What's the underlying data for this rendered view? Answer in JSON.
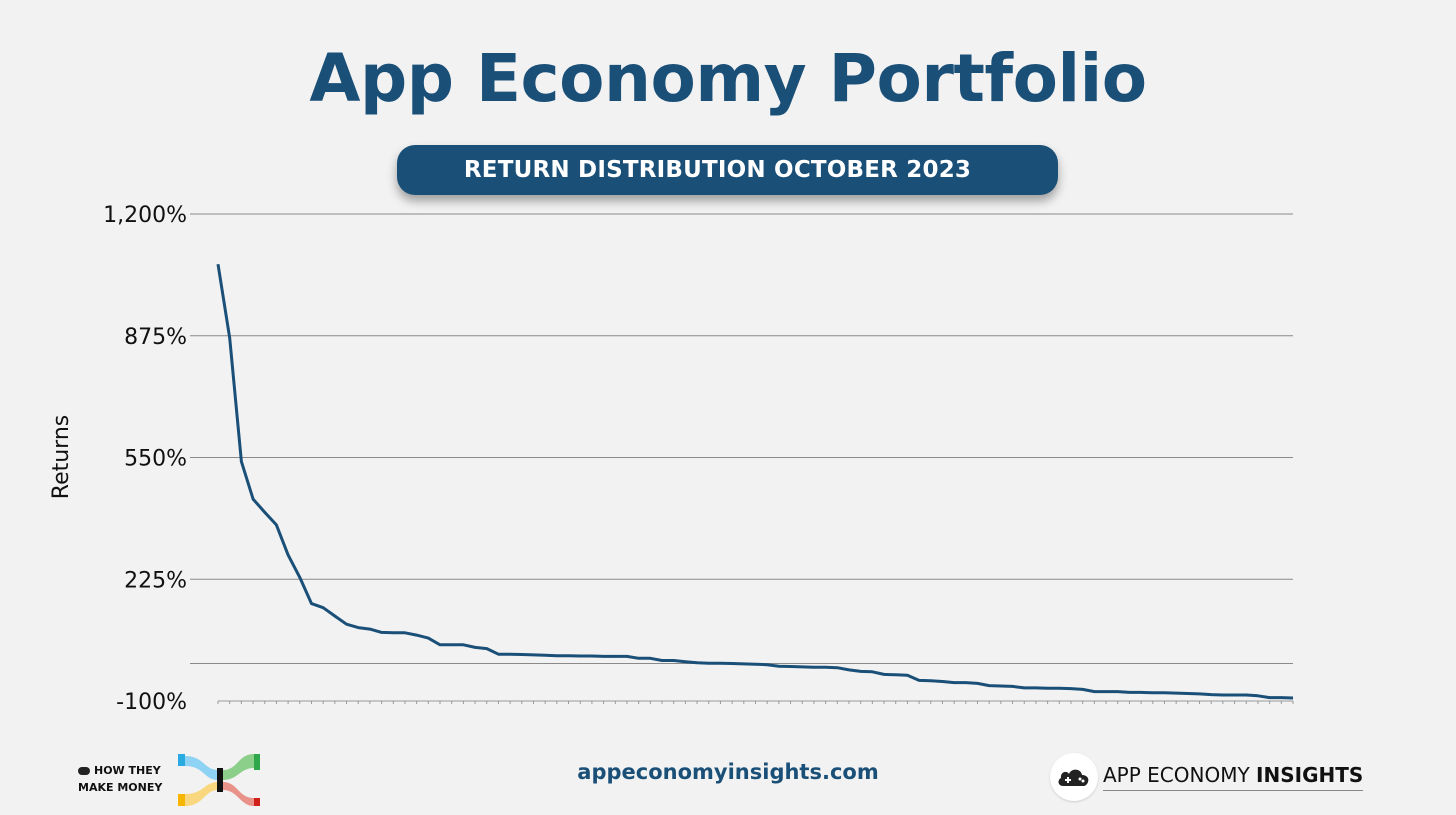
{
  "title": "App Economy Portfolio",
  "subtitle": "RETURN DISTRIBUTION OCTOBER 2023",
  "colors": {
    "accent": "#1a4f78",
    "line": "#1a4f78",
    "background": "#f2f2f2",
    "grid": "#8a8a8a"
  },
  "chart_data": {
    "type": "line",
    "title": "App Economy Portfolio",
    "subtitle": "RETURN DISTRIBUTION OCTOBER 2023",
    "xlabel": "",
    "ylabel": "Returns",
    "ylim": [
      -100,
      1200
    ],
    "yticks": [
      1200,
      875,
      550,
      225,
      -100
    ],
    "ytick_labels": [
      "1,200%",
      "875%",
      "550%",
      "225%",
      "-100%"
    ],
    "extra_gridline": 0,
    "grid": true,
    "series": [
      {
        "name": "Returns",
        "values": [
          1066,
          869,
          539,
          439,
          404,
          370,
          290,
          230,
          160,
          149,
          127,
          105,
          96,
          92,
          83,
          82,
          82,
          76,
          68,
          50,
          50,
          50,
          43,
          40,
          25,
          25,
          24,
          23,
          22,
          21,
          21,
          20,
          20,
          19,
          19,
          19,
          14,
          14,
          8,
          8,
          5,
          2,
          1,
          1,
          0,
          -1,
          -2,
          -3,
          -7,
          -8,
          -9,
          -10,
          -10,
          -11,
          -17,
          -21,
          -22,
          -29,
          -30,
          -31,
          -45,
          -46,
          -48,
          -51,
          -51,
          -53,
          -59,
          -60,
          -61,
          -65,
          -65,
          -66,
          -66,
          -67,
          -69,
          -75,
          -75,
          -75,
          -77,
          -77,
          -78,
          -78,
          -79,
          -80,
          -81,
          -83,
          -84,
          -84,
          -84,
          -86,
          -91,
          -91,
          -92
        ]
      }
    ]
  },
  "footer": {
    "brand_left_line1": "HOW THEY",
    "brand_left_line2": "MAKE MONEY",
    "url": "appeconomyinsights.com",
    "brand_right_regular": "APP ECONOMY ",
    "brand_right_bold": "INSIGHTS"
  }
}
